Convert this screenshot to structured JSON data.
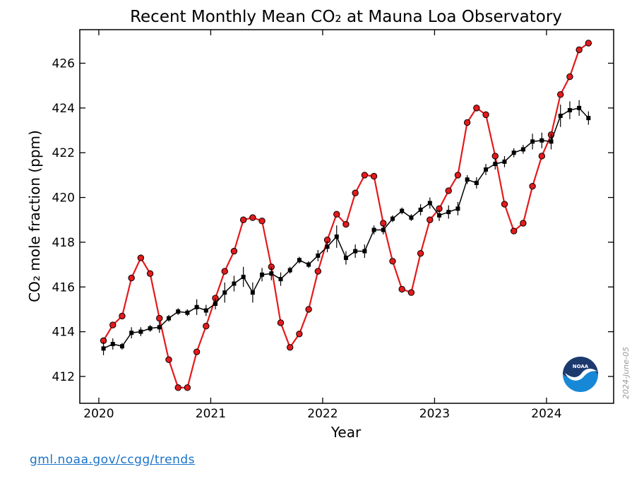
{
  "chart_data": {
    "type": "line",
    "title": "Recent Monthly Mean CO₂ at Mauna Loa Observatory",
    "xlabel": "Year",
    "ylabel": "CO₂ mole fraction (ppm)",
    "xlim": [
      2019.83,
      2024.6
    ],
    "ylim": [
      410.8,
      427.5
    ],
    "x_ticks": [
      2020,
      2021,
      2022,
      2023,
      2024
    ],
    "x_tick_labels": [
      "2020",
      "2021",
      "2022",
      "2023",
      "2024"
    ],
    "y_ticks": [
      412,
      414,
      416,
      418,
      420,
      422,
      424,
      426
    ],
    "y_tick_labels": [
      "412",
      "414",
      "416",
      "418",
      "420",
      "422",
      "424",
      "426"
    ],
    "grid": false,
    "x": [
      "2020-01",
      "2020-02",
      "2020-03",
      "2020-04",
      "2020-05",
      "2020-06",
      "2020-07",
      "2020-08",
      "2020-09",
      "2020-10",
      "2020-11",
      "2020-12",
      "2021-01",
      "2021-02",
      "2021-03",
      "2021-04",
      "2021-05",
      "2021-06",
      "2021-07",
      "2021-08",
      "2021-09",
      "2021-10",
      "2021-11",
      "2021-12",
      "2022-01",
      "2022-02",
      "2022-03",
      "2022-04",
      "2022-05",
      "2022-06",
      "2022-07",
      "2022-08",
      "2022-09",
      "2022-10",
      "2022-11",
      "2022-12",
      "2023-01",
      "2023-02",
      "2023-03",
      "2023-04",
      "2023-05",
      "2023-06",
      "2023-07",
      "2023-08",
      "2023-09",
      "2023-10",
      "2023-11",
      "2023-12",
      "2024-01",
      "2024-02",
      "2024-03",
      "2024-04",
      "2024-05"
    ],
    "series": [
      {
        "color": "#e41a1c",
        "marker": "circle",
        "values": [
          413.6,
          414.3,
          414.7,
          416.4,
          417.3,
          416.6,
          414.6,
          412.75,
          411.5,
          411.5,
          413.1,
          414.25,
          415.5,
          416.7,
          417.6,
          419.0,
          419.1,
          418.95,
          416.9,
          414.4,
          413.3,
          413.9,
          415.0,
          416.7,
          418.1,
          419.25,
          418.8,
          420.2,
          421.0,
          420.95,
          418.85,
          417.15,
          415.9,
          415.75,
          417.5,
          419.0,
          419.5,
          420.3,
          421.0,
          423.35,
          424.0,
          423.7,
          421.85,
          419.7,
          418.5,
          418.85,
          420.5,
          421.85,
          422.8,
          424.6,
          425.4,
          426.6,
          426.9
        ]
      },
      {
        "color": "#000000",
        "marker": "square",
        "values": [
          413.25,
          413.45,
          413.35,
          413.95,
          414.0,
          414.15,
          414.2,
          414.6,
          414.9,
          414.85,
          415.1,
          414.95,
          415.25,
          415.75,
          416.15,
          416.45,
          415.75,
          416.55,
          416.6,
          416.35,
          416.75,
          417.2,
          417.0,
          417.4,
          417.8,
          418.25,
          417.3,
          417.6,
          417.6,
          418.55,
          418.55,
          419.05,
          419.4,
          419.1,
          419.45,
          419.75,
          419.2,
          419.35,
          419.5,
          420.8,
          420.65,
          421.25,
          421.5,
          421.6,
          422.0,
          422.15,
          422.5,
          422.55,
          422.5,
          423.65,
          423.9,
          424.0,
          423.55
        ],
        "errors": [
          0.3,
          0.25,
          0.15,
          0.25,
          0.2,
          0.15,
          0.25,
          0.15,
          0.15,
          0.15,
          0.35,
          0.25,
          0.25,
          0.45,
          0.35,
          0.45,
          0.45,
          0.3,
          0.3,
          0.3,
          0.15,
          0.15,
          0.15,
          0.25,
          0.25,
          0.5,
          0.3,
          0.3,
          0.3,
          0.2,
          0.2,
          0.15,
          0.15,
          0.15,
          0.25,
          0.25,
          0.25,
          0.3,
          0.3,
          0.2,
          0.25,
          0.25,
          0.25,
          0.25,
          0.2,
          0.2,
          0.35,
          0.35,
          0.35,
          0.5,
          0.4,
          0.35,
          0.3
        ]
      }
    ]
  },
  "watermark_date": "2024-June-05",
  "logo_text": "NOAA",
  "footer_link": "gml.noaa.gov/ccgg/trends",
  "colors": {
    "link": "#1a73c8",
    "logo_dark": "#1d3a6e",
    "logo_light": "#1788d6"
  }
}
